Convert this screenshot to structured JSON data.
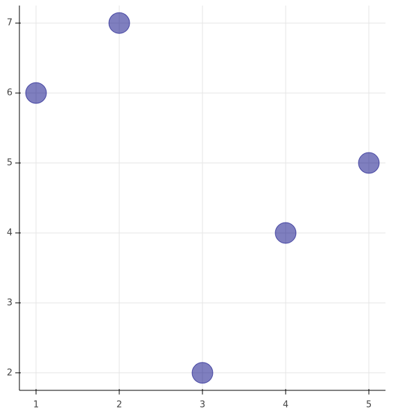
{
  "chart_data": {
    "type": "scatter",
    "x": [
      1,
      2,
      3,
      4,
      5
    ],
    "values": [
      6,
      7,
      2,
      4,
      5
    ],
    "color": "navy",
    "alpha": 0.5,
    "xlim": [
      0.8,
      5.2
    ],
    "ylim": [
      1.75,
      7.25
    ],
    "xticks": [
      1,
      2,
      3,
      4,
      5
    ],
    "yticks": [
      2,
      3,
      4,
      5,
      6,
      7
    ],
    "grid": true
  }
}
